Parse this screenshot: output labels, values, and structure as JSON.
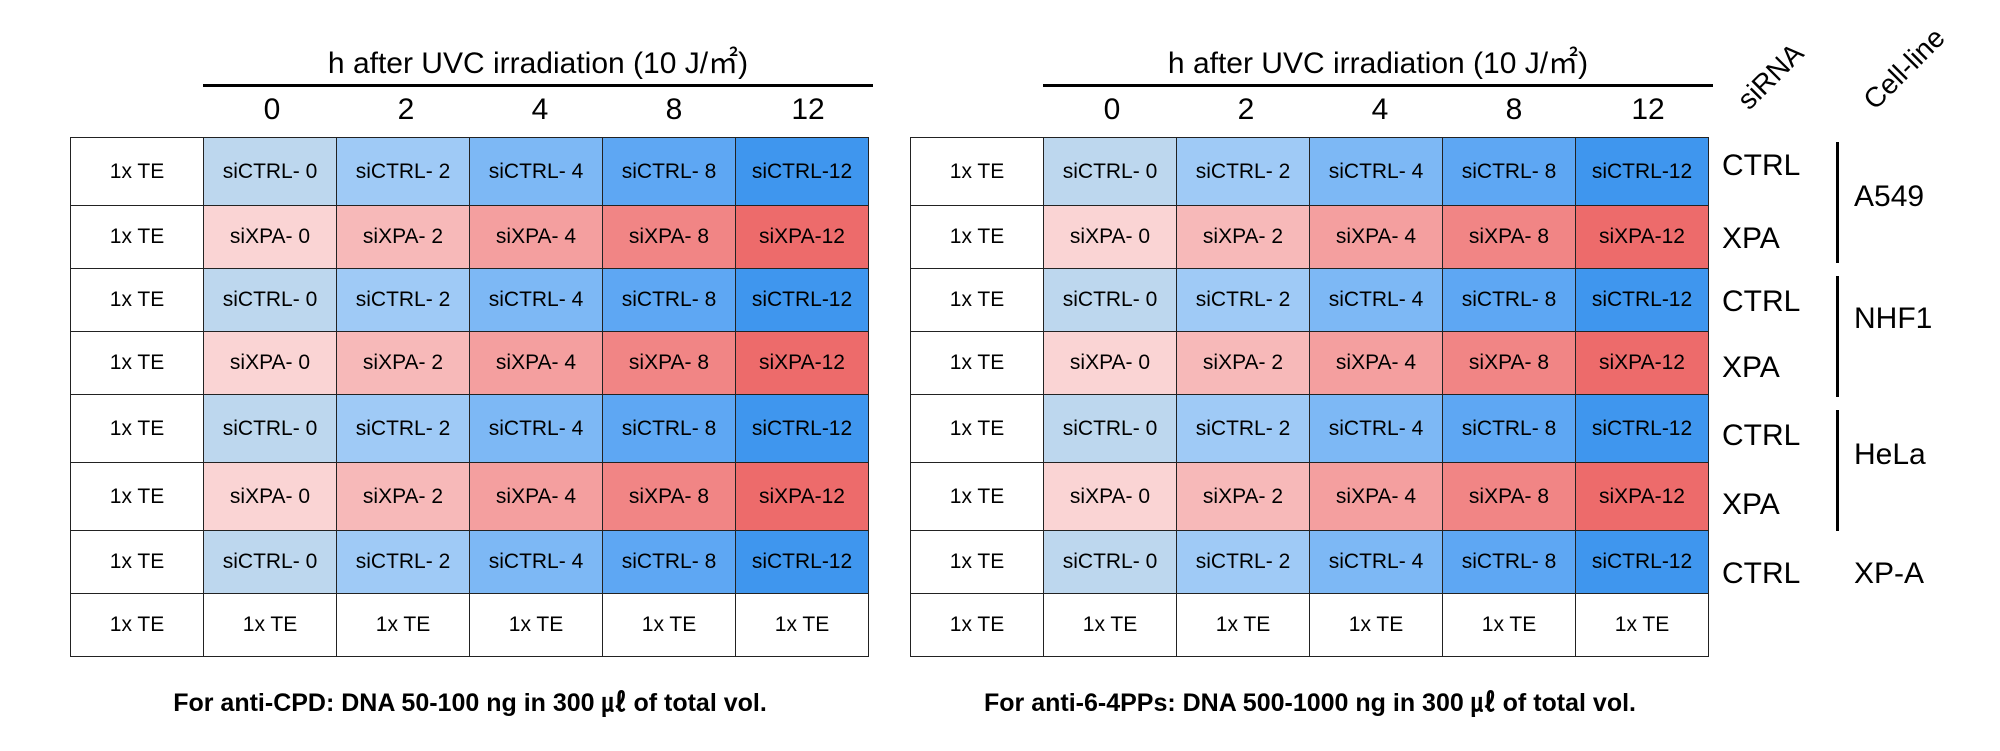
{
  "header_title": "h after UVC irradiation (10 J/㎡)",
  "time_points": [
    "0",
    "2",
    "4",
    "8",
    "12"
  ],
  "left_note": "For anti-CPD: DNA 50-100 ng in 300 ㎕ of total vol.",
  "right_note": "For anti-6-4PPs: DNA 500-1000 ng in 300 ㎕ of total vol.",
  "col_headers": {
    "sirna": "siRNA",
    "cell_line": "Cell-line"
  },
  "plate_rows": [
    {
      "kind": "blue",
      "cells": [
        "1x TE",
        "siCTRL- 0",
        "siCTRL- 2",
        "siCTRL- 4",
        "siCTRL- 8",
        "siCTRL-12"
      ]
    },
    {
      "kind": "red",
      "cells": [
        "1x TE",
        "siXPA- 0",
        "siXPA- 2",
        "siXPA- 4",
        "siXPA- 8",
        "siXPA-12"
      ]
    },
    {
      "kind": "blue",
      "cells": [
        "1x TE",
        "siCTRL- 0",
        "siCTRL- 2",
        "siCTRL- 4",
        "siCTRL- 8",
        "siCTRL-12"
      ]
    },
    {
      "kind": "red",
      "cells": [
        "1x TE",
        "siXPA- 0",
        "siXPA- 2",
        "siXPA- 4",
        "siXPA- 8",
        "siXPA-12"
      ]
    },
    {
      "kind": "blue",
      "cells": [
        "1x TE",
        "siCTRL- 0",
        "siCTRL- 2",
        "siCTRL- 4",
        "siCTRL- 8",
        "siCTRL-12"
      ]
    },
    {
      "kind": "red",
      "cells": [
        "1x TE",
        "siXPA- 0",
        "siXPA- 2",
        "siXPA- 4",
        "siXPA- 8",
        "siXPA-12"
      ]
    },
    {
      "kind": "blue",
      "cells": [
        "1x TE",
        "siCTRL- 0",
        "siCTRL- 2",
        "siCTRL- 4",
        "siCTRL- 8",
        "siCTRL-12"
      ]
    },
    {
      "kind": "white",
      "cells": [
        "1x TE",
        "1x TE",
        "1x TE",
        "1x TE",
        "1x TE",
        "1x TE"
      ]
    }
  ],
  "sirna_labels": [
    "CTRL",
    "XPA",
    "CTRL",
    "XPA",
    "CTRL",
    "XPA",
    "CTRL"
  ],
  "cell_lines": [
    "A549",
    "NHF1",
    "HeLa",
    "XP-A"
  ],
  "colors": {
    "blue": [
      "#bdd7ee",
      "#9fcaf6",
      "#7db8f5",
      "#5ea7f3",
      "#3f96ee"
    ],
    "red": [
      "#fad4d4",
      "#f7b9b9",
      "#f49f9f",
      "#f18585",
      "#ed6b6b"
    ]
  }
}
